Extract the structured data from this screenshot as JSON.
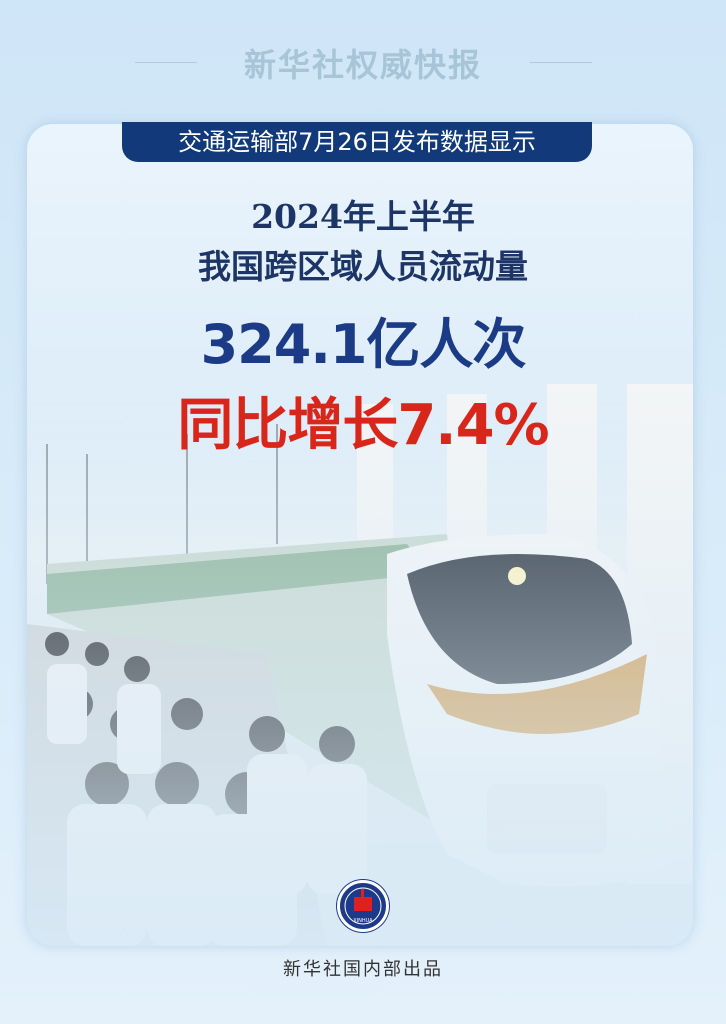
{
  "header": {
    "title": "新华社权威快报"
  },
  "banner": {
    "text": "交通运输部7月26日发布数据显示"
  },
  "headline": {
    "line1": "2024年上半年",
    "line2": "我国跨区域人员流动量",
    "figure": "324.1亿人次",
    "growth": "同比增长7.4%"
  },
  "colors": {
    "navy": "#123a7a",
    "red": "#d8261b",
    "background": "#cfe6f8"
  },
  "logo": {
    "text": "XINHUA"
  },
  "footer": {
    "text": "新华社国内部出品"
  }
}
